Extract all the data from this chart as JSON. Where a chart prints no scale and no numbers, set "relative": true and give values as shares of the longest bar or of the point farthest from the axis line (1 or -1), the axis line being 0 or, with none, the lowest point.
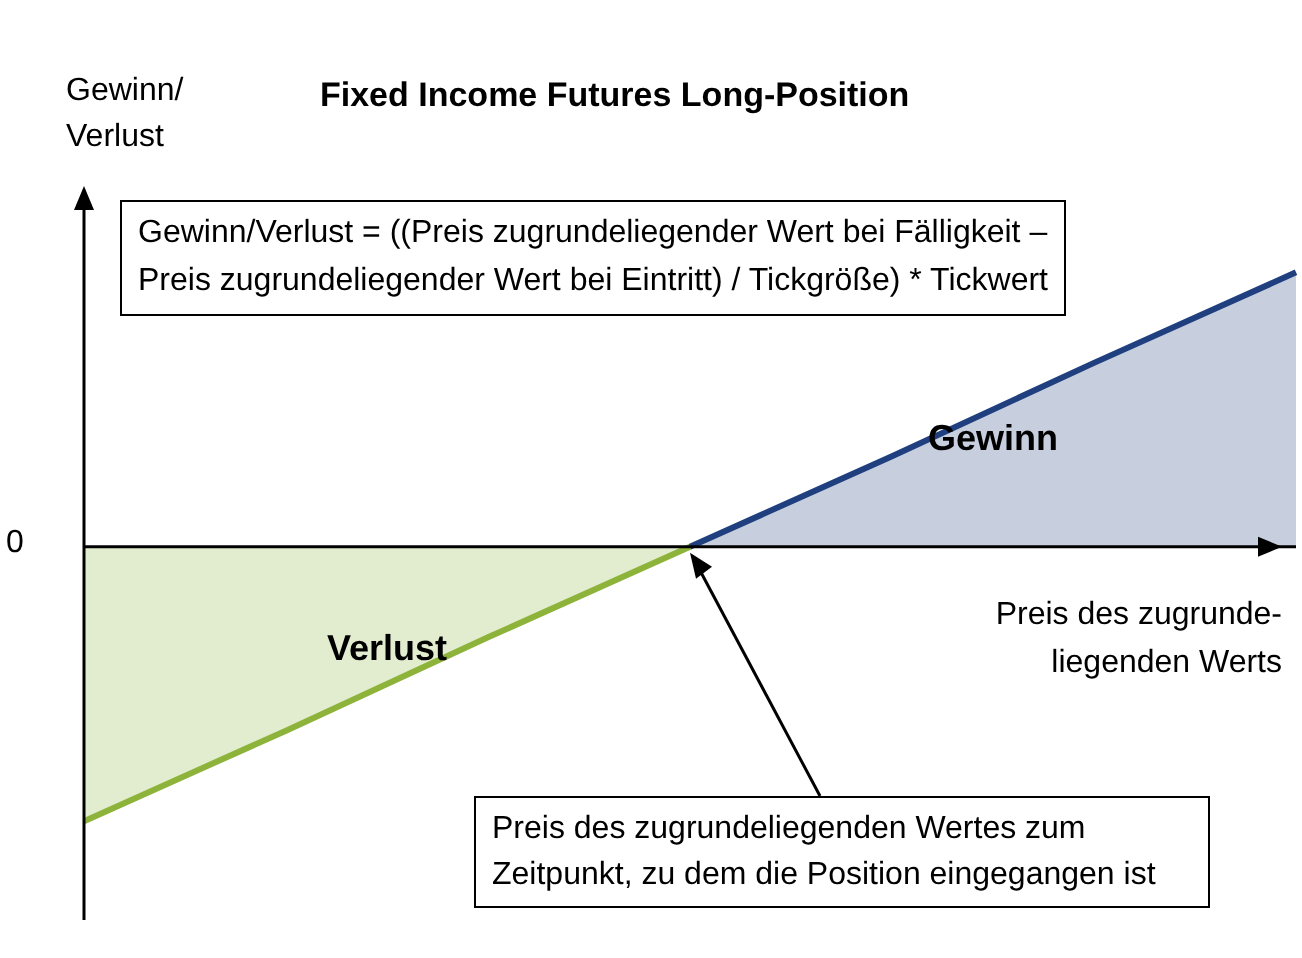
{
  "chart_data": {
    "type": "area",
    "title": "Fixed Income Futures Long-Position",
    "xlabel": "Preis des zugrunde-liegenden Werts",
    "ylabel": "Gewinn/ Verlust",
    "relative": true,
    "categories": [
      null,
      null,
      null,
      null,
      null,
      null,
      null
    ],
    "series": [
      {
        "name": "Verlust",
        "color": "#8db33a",
        "values": [
          -1,
          -0.67,
          -0.33,
          0,
          null,
          null,
          null
        ]
      },
      {
        "name": "Gewinn",
        "color": "#1f3f7f",
        "values": [
          null,
          null,
          null,
          0,
          0.33,
          0.67,
          1
        ]
      }
    ],
    "annotations": [
      "0",
      "Gewinn/Verlust = ((Preis zugrundeliegender Wert bei Fälligkeit – Preis zugrundeliegender Wert bei Eintritt) / Tickgröße) * Tickwert",
      "Preis des zugrundeliegenden Wertes zum Zeitpunkt, zu dem die Position eingegangen ist"
    ]
  }
}
